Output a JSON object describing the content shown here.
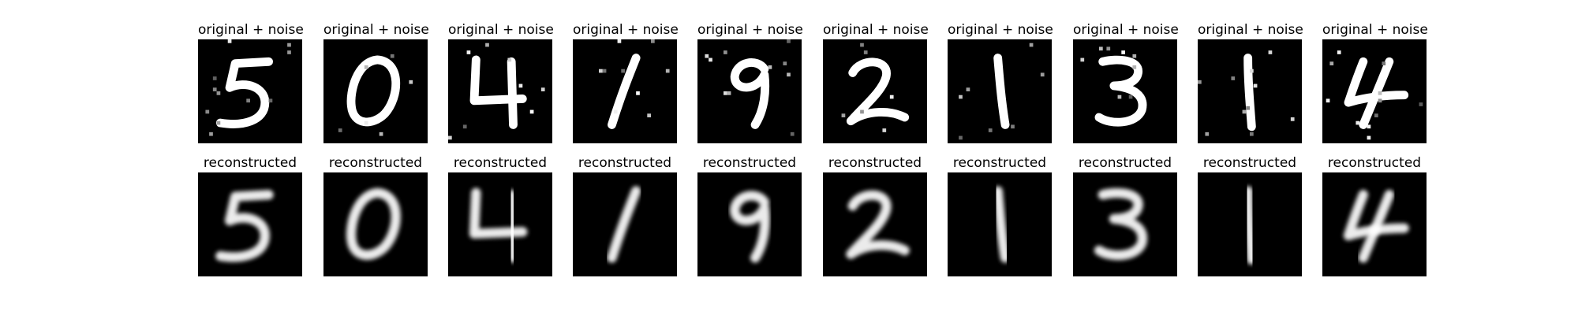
{
  "rows": [
    {
      "title": "original + noise",
      "kind": "noisy",
      "digits": [
        "5",
        "0",
        "4",
        "1",
        "9",
        "2",
        "1",
        "3",
        "1",
        "4"
      ]
    },
    {
      "title": "reconstructed",
      "kind": "clean",
      "digits": [
        "5",
        "0",
        "4",
        "1",
        "9",
        "2",
        "1",
        "3",
        "1",
        "4"
      ]
    }
  ],
  "colors": {
    "background": "#ffffff",
    "tile": "#000000",
    "stroke": "#ffffff"
  }
}
